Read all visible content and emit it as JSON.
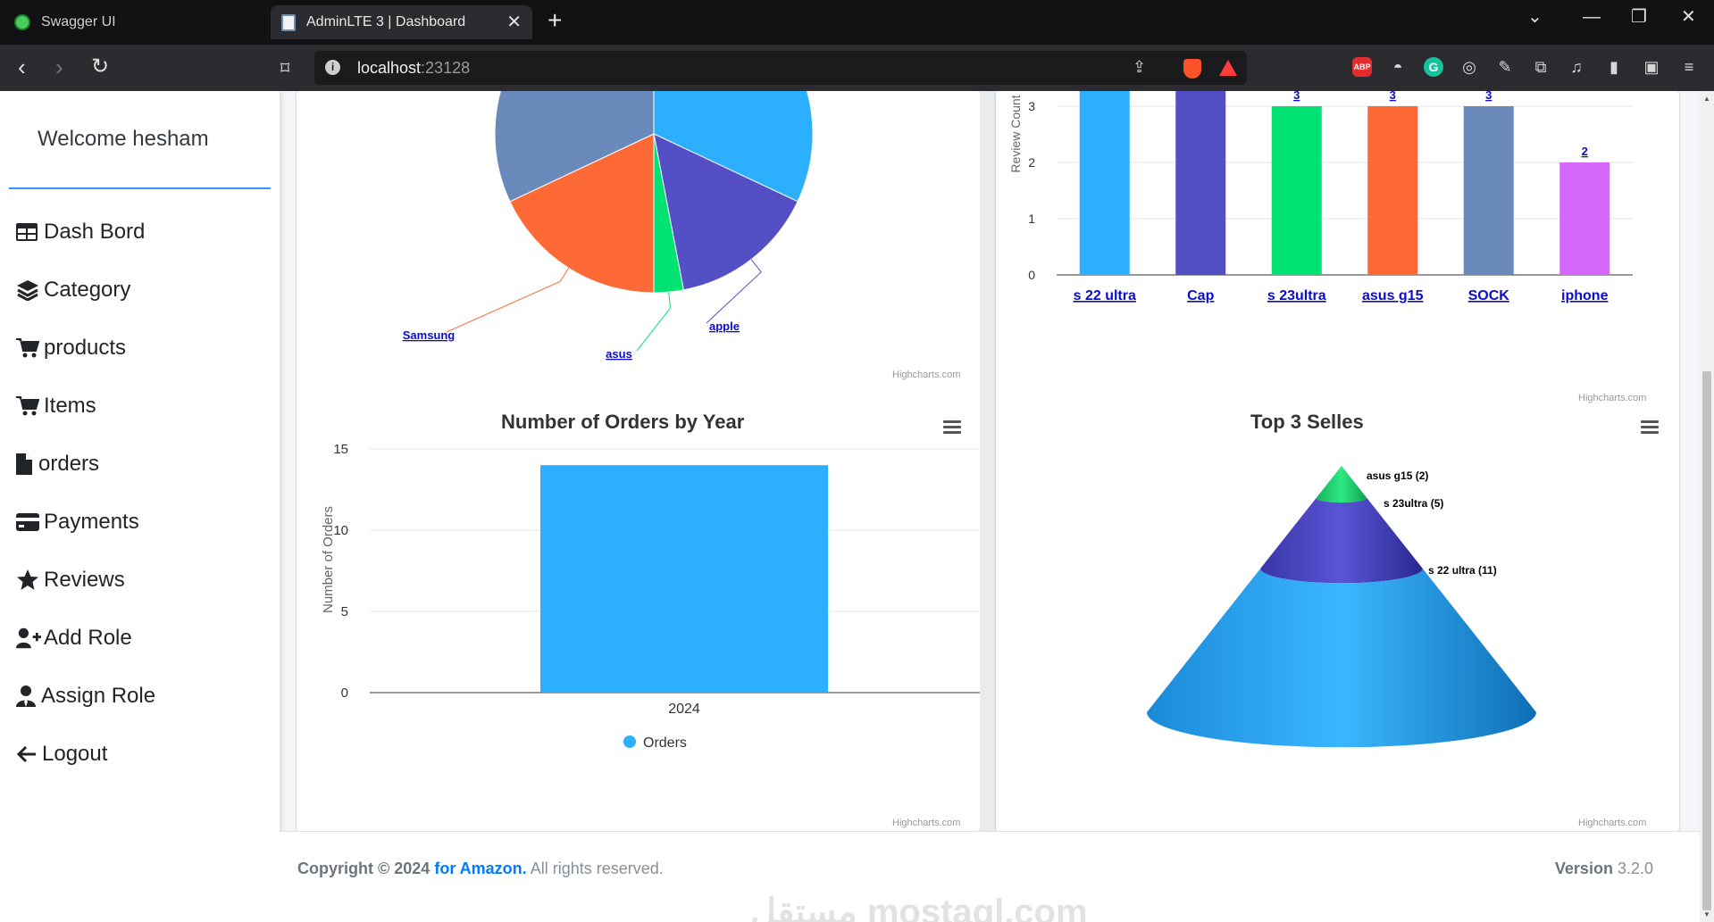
{
  "browser": {
    "tabs": [
      {
        "title": "Swagger UI",
        "active": false,
        "favicon": "swagger-icon"
      },
      {
        "title": "AdminLTE 3 | Dashboard",
        "active": true,
        "favicon": "document-icon"
      }
    ],
    "url_host": "localhost",
    "url_port": ":23128",
    "extensions": [
      "abp-icon",
      "weather-icon",
      "grammarly-icon",
      "vpn-icon",
      "eyedropper-icon",
      "puzzle-icon",
      "music-icon",
      "sidebar-icon",
      "wallet-icon",
      "menu-icon"
    ]
  },
  "sidebar": {
    "welcome": "Welcome hesham",
    "items": [
      {
        "label": "Dash Bord",
        "icon": "table-icon"
      },
      {
        "label": "Category",
        "icon": "layers-icon"
      },
      {
        "label": "products",
        "icon": "cart-icon"
      },
      {
        "label": "Items",
        "icon": "cart-icon"
      },
      {
        "label": "orders",
        "icon": "file-icon"
      },
      {
        "label": "Payments",
        "icon": "credit-card-icon"
      },
      {
        "label": "Reviews",
        "icon": "star-icon"
      },
      {
        "label": "Add Role",
        "icon": "user-plus-icon"
      },
      {
        "label": "Assign Role",
        "icon": "user-tie-icon"
      },
      {
        "label": "Logout",
        "icon": "arrow-left-icon"
      }
    ]
  },
  "credit": "Highcharts.com",
  "footer": {
    "copyright": "Copyright © 2024",
    "for_text": "for",
    "brand": "Amazon.",
    "rights": "All rights reserved.",
    "version_label": "Version",
    "version": "3.2.0"
  },
  "watermark": "مستقل mostaql.com",
  "chart_data": [
    {
      "type": "pie",
      "title": "",
      "labels_visible": [
        "Samsung",
        "asus",
        "apple"
      ],
      "slices": [
        {
          "name": "",
          "value": 32,
          "color": "#2caffe"
        },
        {
          "name": "apple",
          "value": 15,
          "color": "#544fc5"
        },
        {
          "name": "asus",
          "value": 3,
          "color": "#00e272"
        },
        {
          "name": "Samsung",
          "value": 18,
          "color": "#fe6a35"
        },
        {
          "name": "",
          "value": 32,
          "color": "#6b8abc"
        }
      ]
    },
    {
      "type": "bar",
      "title": "",
      "ylabel": "Review Count",
      "categories": [
        "s 22 ultra",
        "Cap",
        "s 23ultra",
        "asus g15",
        "SOCK",
        "iphone"
      ],
      "values": [
        4,
        4,
        3,
        3,
        3,
        2
      ],
      "data_labels": [
        "",
        "",
        "3",
        "3",
        "3",
        "2"
      ],
      "colors": [
        "#2caffe",
        "#544fc5",
        "#00e272",
        "#fe6a35",
        "#6b8abc",
        "#d568fb"
      ],
      "y_ticks": [
        0,
        1,
        2,
        3
      ]
    },
    {
      "type": "bar",
      "title": "Number of Orders by Year",
      "ylabel": "Number of Orders",
      "categories": [
        "2024"
      ],
      "series": [
        {
          "name": "Orders",
          "values": [
            14
          ]
        }
      ],
      "ylim": [
        0,
        15
      ],
      "y_ticks": [
        0,
        5,
        10,
        15
      ],
      "color": "#2caffe"
    },
    {
      "type": "pyramid",
      "title": "Top 3 Selles",
      "series": [
        {
          "name": "asus g15",
          "value": 2,
          "label": "asus g15 (2)",
          "color": "#00e272"
        },
        {
          "name": "s 23ultra",
          "value": 5,
          "label": "s 23ultra (5)",
          "color": "#544fc5"
        },
        {
          "name": "s 22 ultra",
          "value": 11,
          "label": "s 22 ultra (11)",
          "color": "#2caffe"
        }
      ]
    }
  ]
}
